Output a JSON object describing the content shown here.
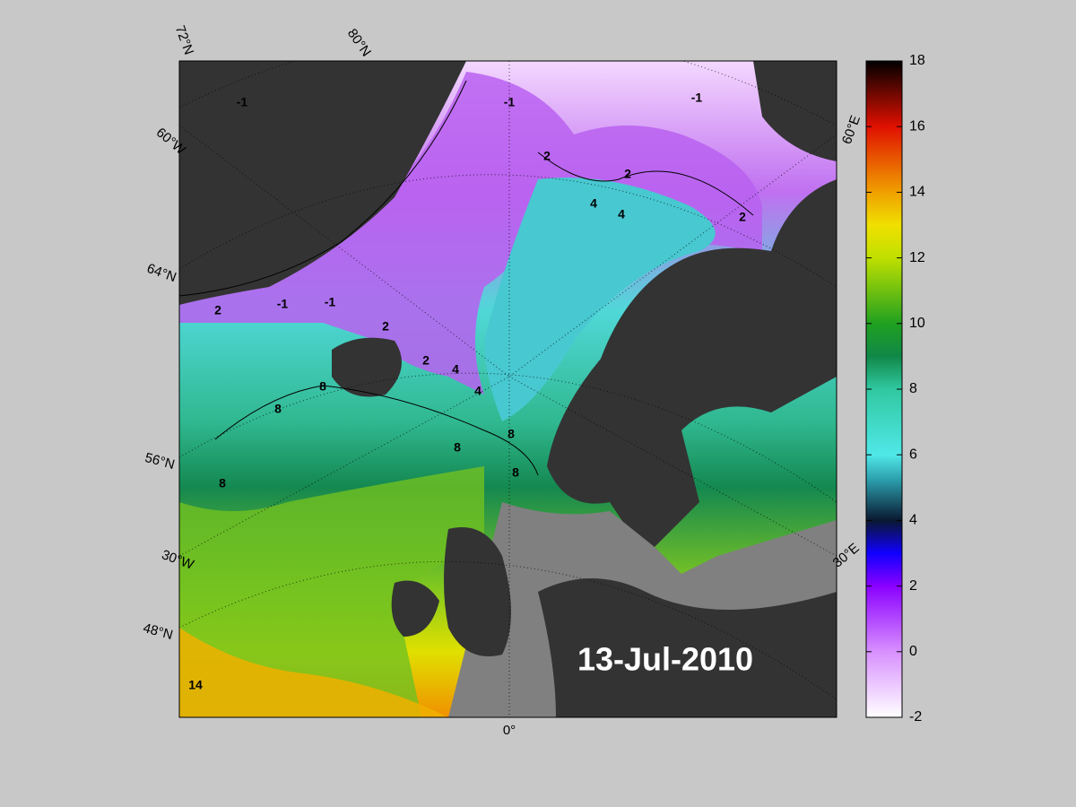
{
  "map": {
    "date": "13-Jul-2010",
    "graticule_labels": [
      "72°N",
      "80°N",
      "60°W",
      "64°N",
      "56°N",
      "30°W",
      "48°N",
      "0°",
      "60°E",
      "30°E"
    ],
    "contour_labels": [
      -1,
      -1,
      -1,
      -1,
      -1,
      2,
      2,
      2,
      2,
      2,
      2,
      4,
      4,
      4,
      4,
      8,
      8,
      8,
      8,
      8,
      8,
      14
    ]
  },
  "colorbar": {
    "lim": [
      -2,
      18
    ],
    "ticks": [
      -2,
      0,
      2,
      4,
      6,
      8,
      10,
      12,
      14,
      16,
      18
    ]
  }
}
